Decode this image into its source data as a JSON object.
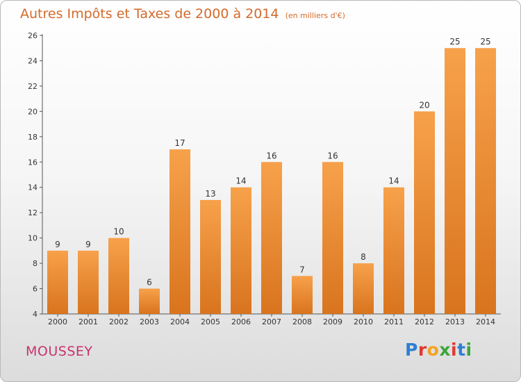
{
  "chart_data": {
    "type": "bar",
    "title": "Autres Impôts et Taxes de 2000 à 2014",
    "subtitle": "(en milliers d'€)",
    "categories": [
      "2000",
      "2001",
      "2002",
      "2003",
      "2004",
      "2005",
      "2006",
      "2007",
      "2008",
      "2009",
      "2010",
      "2011",
      "2012",
      "2013",
      "2014"
    ],
    "values": [
      9,
      9,
      10,
      6,
      17,
      13,
      14,
      16,
      7,
      16,
      8,
      14,
      20,
      25,
      25
    ],
    "data_labels": [
      "9",
      "9",
      "10",
      "6",
      "17",
      "13",
      "14",
      "16",
      "7",
      "16",
      "8",
      "14",
      "20",
      "25",
      "25"
    ],
    "ylim": [
      4,
      26
    ],
    "yticks": [
      4,
      6,
      8,
      10,
      12,
      14,
      16,
      18,
      20,
      22,
      24,
      26
    ],
    "grid": false,
    "bar_color_top": "#f7a14b",
    "bar_color_bottom": "#d9741e"
  },
  "footer": {
    "commune": "MOUSSEY",
    "logo_text": "Proxiti",
    "logo_colors": [
      "#2f7fd3",
      "#e03a2f",
      "#f2a31f",
      "#3aa63a",
      "#e03a2f",
      "#2f7fd3",
      "#3aa63a"
    ]
  }
}
